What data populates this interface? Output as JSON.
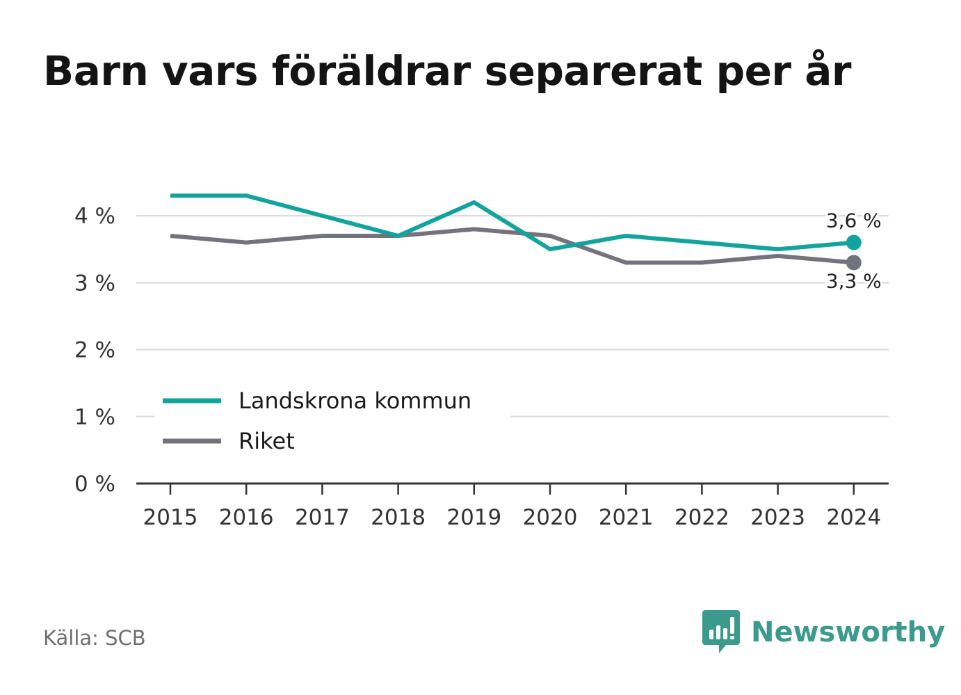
{
  "title": "Barn vars föräldrar separerat per år",
  "source": "Källa: SCB",
  "brand": {
    "name": "Newsworthy",
    "icon": "newsworthy-logo-icon",
    "color": "#3a9a8c"
  },
  "chart_data": {
    "type": "line",
    "x": [
      "2015",
      "2016",
      "2017",
      "2018",
      "2019",
      "2020",
      "2021",
      "2022",
      "2023",
      "2024"
    ],
    "series": [
      {
        "name": "Landskrona kommun",
        "color": "#12a49c",
        "values": [
          4.3,
          4.3,
          4.0,
          3.7,
          4.2,
          3.5,
          3.7,
          3.6,
          3.5,
          3.6
        ],
        "end_label": "3,6 %"
      },
      {
        "name": "Riket",
        "color": "#73737b",
        "values": [
          3.7,
          3.6,
          3.7,
          3.7,
          3.8,
          3.7,
          3.3,
          3.3,
          3.4,
          3.3
        ],
        "end_label": "3,3 %"
      }
    ],
    "ylim": [
      0,
      4.5
    ],
    "yticks": [
      0,
      1,
      2,
      3,
      4
    ],
    "ytick_labels": [
      "0 %",
      "1 %",
      "2 %",
      "3 %",
      "4 %"
    ],
    "grid": true,
    "legend": "bottom-left"
  }
}
